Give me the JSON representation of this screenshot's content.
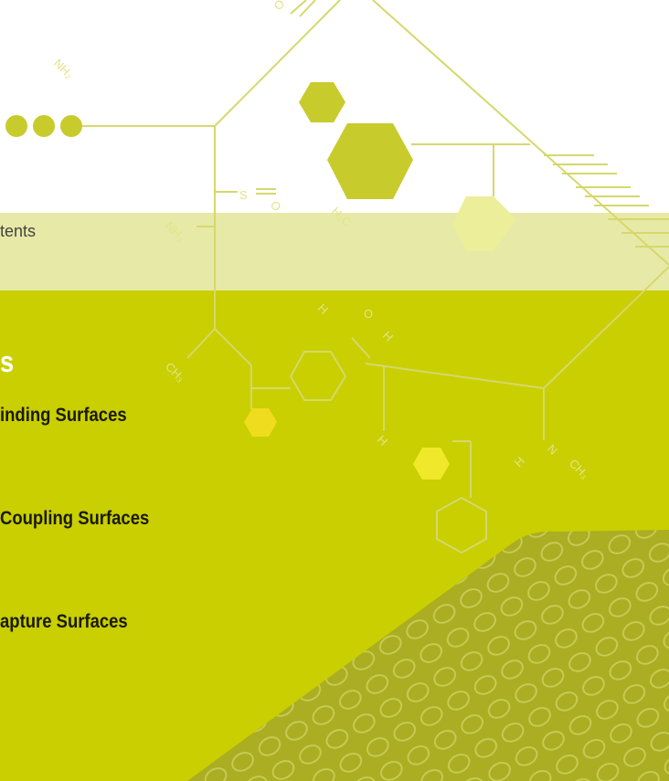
{
  "header": {
    "nav_label": "tents"
  },
  "section": {
    "heading": "s",
    "items": [
      "inding Surfaces",
      "Coupling Surfaces",
      "apture Surfaces"
    ]
  },
  "molecule_labels": [
    "NH₂",
    "O",
    "S",
    "O",
    "NH₃",
    "H₃C",
    "H",
    "O",
    "H",
    "CH₃",
    "H",
    "N",
    "H",
    "CH₃"
  ]
}
